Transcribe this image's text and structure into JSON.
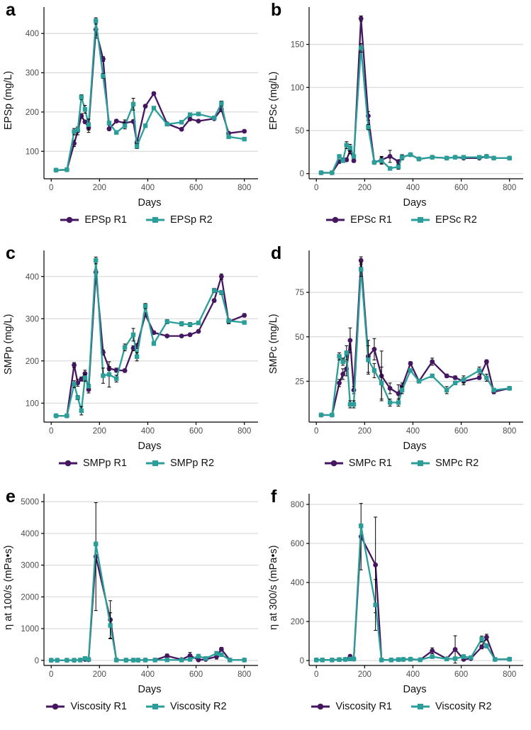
{
  "figure": {
    "colors": {
      "r1": "#451760",
      "r2": "#2B9E99",
      "grid": "#DBDBDB",
      "axis": "#000000",
      "tick_text": "#4D4D4D",
      "background": "#FFFFFF"
    }
  },
  "chart_data": [
    {
      "letter": "a",
      "type": "line",
      "ylabel": "EPSp (mg/L)",
      "xlabel": "Days",
      "xlim": [
        -30,
        845
      ],
      "ylim": [
        30,
        460
      ],
      "xticks": [
        0,
        200,
        400,
        600,
        800
      ],
      "yticks": [
        100,
        200,
        300,
        400
      ],
      "x": [
        20,
        65,
        95,
        110,
        125,
        140,
        155,
        185,
        215,
        240,
        270,
        305,
        340,
        355,
        390,
        425,
        480,
        540,
        575,
        610,
        675,
        705,
        735,
        800
      ],
      "series": [
        {
          "name": "EPSp R1",
          "color": "#451760",
          "marker": "circle",
          "values": [
            52,
            53,
            120,
            152,
            190,
            175,
            160,
            410,
            335,
            157,
            177,
            172,
            176,
            122,
            215,
            247,
            170,
            156,
            182,
            177,
            183,
            207,
            146,
            151
          ],
          "errors": [
            3,
            3,
            8,
            10,
            6,
            4,
            12,
            22,
            6,
            4,
            4,
            8,
            4,
            6,
            4,
            4,
            3,
            3,
            3,
            3,
            3,
            6,
            3,
            3
          ]
        },
        {
          "name": "EPSp R2",
          "color": "#2B9E99",
          "marker": "square",
          "values": [
            52,
            53,
            150,
            155,
            238,
            207,
            168,
            432,
            292,
            172,
            148,
            165,
            220,
            113,
            165,
            210,
            169,
            174,
            193,
            195,
            185,
            222,
            137,
            131
          ],
          "errors": [
            3,
            3,
            8,
            4,
            6,
            10,
            14,
            8,
            6,
            4,
            4,
            8,
            15,
            6,
            4,
            4,
            3,
            3,
            3,
            3,
            3,
            6,
            3,
            3
          ]
        }
      ],
      "legend": [
        {
          "label": "EPSp R1"
        },
        {
          "label": "EPSp R2"
        }
      ]
    },
    {
      "letter": "b",
      "type": "line",
      "ylabel": "EPSc (mg/L)",
      "xlabel": "Days",
      "xlim": [
        -30,
        845
      ],
      "ylim": [
        -6,
        190
      ],
      "xticks": [
        0,
        200,
        400,
        600,
        800
      ],
      "yticks": [
        0,
        50,
        100,
        150
      ],
      "x": [
        20,
        65,
        95,
        110,
        125,
        140,
        155,
        185,
        215,
        240,
        270,
        305,
        340,
        355,
        390,
        425,
        480,
        540,
        575,
        610,
        675,
        705,
        735,
        800
      ],
      "series": [
        {
          "name": "EPSc R1",
          "color": "#451760",
          "marker": "circle",
          "values": [
            1,
            1,
            14,
            16,
            16,
            27,
            15,
            180,
            67,
            13,
            16,
            20,
            14,
            19,
            22,
            17,
            19,
            18,
            19,
            18,
            18,
            20,
            18,
            18
          ],
          "errors": [
            1,
            1,
            2,
            2,
            2,
            4,
            2,
            3,
            5,
            2,
            4,
            7,
            2,
            3,
            2,
            2,
            1,
            1,
            1,
            1,
            1,
            1,
            1,
            1
          ]
        },
        {
          "name": "EPSc R2",
          "color": "#2B9E99",
          "marker": "square",
          "values": [
            1,
            1,
            20,
            15,
            33,
            30,
            20,
            146,
            54,
            13,
            15,
            6,
            8,
            19,
            22,
            17,
            19,
            18,
            19,
            19,
            19,
            20,
            18,
            18
          ],
          "errors": [
            1,
            1,
            2,
            2,
            4,
            4,
            2,
            5,
            3,
            2,
            4,
            2,
            3,
            2,
            2,
            2,
            1,
            1,
            1,
            1,
            1,
            1,
            1,
            1
          ]
        }
      ],
      "legend": [
        {
          "label": "EPSc R1"
        },
        {
          "label": "EPSc R2"
        }
      ]
    },
    {
      "letter": "c",
      "type": "line",
      "ylabel": "SMPp (mg/L)",
      "xlabel": "Days",
      "xlim": [
        -30,
        845
      ],
      "ylim": [
        55,
        455
      ],
      "xticks": [
        0,
        200,
        400,
        600,
        800
      ],
      "yticks": [
        100,
        200,
        300,
        400
      ],
      "x": [
        20,
        65,
        95,
        110,
        125,
        140,
        155,
        185,
        215,
        240,
        270,
        305,
        340,
        355,
        390,
        425,
        480,
        540,
        575,
        610,
        675,
        705,
        735,
        800
      ],
      "series": [
        {
          "name": "SMPp R1",
          "color": "#451760",
          "marker": "circle",
          "values": [
            70,
            70,
            190,
            148,
            157,
            170,
            132,
            410,
            220,
            182,
            178,
            177,
            230,
            235,
            310,
            267,
            259,
            259,
            262,
            270,
            343,
            400,
            293,
            308
          ],
          "errors": [
            2,
            2,
            6,
            8,
            5,
            8,
            8,
            6,
            6,
            5,
            5,
            4,
            6,
            6,
            5,
            4,
            3,
            3,
            3,
            3,
            4,
            6,
            5,
            4
          ]
        },
        {
          "name": "SMPp R2",
          "color": "#2B9E99",
          "marker": "square",
          "values": [
            70,
            70,
            145,
            113,
            82,
            160,
            140,
            438,
            165,
            168,
            158,
            232,
            262,
            210,
            330,
            241,
            293,
            288,
            286,
            290,
            367,
            362,
            295,
            291
          ],
          "errors": [
            2,
            2,
            8,
            5,
            10,
            8,
            5,
            8,
            18,
            30,
            8,
            8,
            15,
            10,
            6,
            4,
            5,
            5,
            5,
            4,
            5,
            5,
            5,
            4
          ]
        }
      ],
      "legend": [
        {
          "label": "SMPp R1"
        },
        {
          "label": "SMPp R2"
        }
      ]
    },
    {
      "letter": "d",
      "type": "line",
      "ylabel": "SMPc (mg/L)",
      "xlabel": "Days",
      "xlim": [
        -30,
        845
      ],
      "ylim": [
        2,
        97
      ],
      "xticks": [
        0,
        200,
        400,
        600,
        800
      ],
      "yticks": [
        25,
        50,
        75
      ],
      "x": [
        20,
        65,
        95,
        110,
        125,
        140,
        155,
        185,
        215,
        240,
        270,
        305,
        340,
        355,
        390,
        425,
        480,
        540,
        575,
        610,
        675,
        705,
        735,
        800
      ],
      "series": [
        {
          "name": "SMPc R1",
          "color": "#451760",
          "marker": "circle",
          "values": [
            6,
            6,
            24,
            29,
            32,
            48,
            20,
            93,
            39,
            43,
            28,
            21,
            18,
            22,
            35,
            25,
            36,
            28,
            27,
            25,
            27,
            36,
            19,
            21
          ],
          "errors": [
            1,
            1,
            2,
            3,
            4,
            7,
            2,
            2,
            9,
            6,
            14,
            3,
            5,
            2,
            1,
            1,
            2,
            1,
            1,
            2,
            1,
            1,
            1,
            1
          ]
        },
        {
          "name": "SMPc R2",
          "color": "#2B9E99",
          "marker": "square",
          "values": [
            6,
            6,
            39,
            36,
            41,
            12,
            12,
            88,
            37,
            31,
            24,
            13,
            13,
            20,
            31,
            25,
            28,
            20,
            24,
            26,
            31,
            27,
            20,
            21
          ],
          "errors": [
            1,
            1,
            2,
            2,
            4,
            2,
            2,
            4,
            8,
            4,
            9,
            2,
            2,
            2,
            1,
            1,
            1,
            2,
            1,
            2,
            2,
            2,
            1,
            1
          ]
        }
      ],
      "legend": [
        {
          "label": "SMPc R1"
        },
        {
          "label": "SMPc R2"
        }
      ]
    },
    {
      "letter": "e",
      "type": "line",
      "ylabel": "η at 100/s (mPa•s)",
      "xlabel": "Days",
      "xlim": [
        -30,
        845
      ],
      "ylim": [
        -160,
        5160
      ],
      "xticks": [
        0,
        200,
        400,
        600,
        800
      ],
      "yticks": [
        0,
        1000,
        2000,
        3000,
        4000,
        5000
      ],
      "x": [
        0,
        25,
        65,
        95,
        120,
        140,
        155,
        185,
        245,
        270,
        310,
        340,
        360,
        390,
        430,
        480,
        540,
        575,
        610,
        640,
        685,
        705,
        740,
        800
      ],
      "series": [
        {
          "name": "Viscosity R1",
          "color": "#451760",
          "marker": "circle",
          "values": [
            5,
            5,
            5,
            5,
            10,
            30,
            20,
            3270,
            1280,
            10,
            8,
            8,
            8,
            10,
            10,
            140,
            25,
            150,
            15,
            30,
            120,
            350,
            10,
            10
          ],
          "errors": [
            2,
            2,
            2,
            2,
            3,
            10,
            6,
            1700,
            600,
            3,
            2,
            2,
            2,
            3,
            3,
            60,
            8,
            100,
            5,
            10,
            80,
            60,
            3,
            3
          ]
        },
        {
          "name": "Viscosity R2",
          "color": "#2B9E99",
          "marker": "square",
          "values": [
            5,
            5,
            5,
            5,
            10,
            60,
            30,
            3670,
            1100,
            10,
            8,
            8,
            8,
            10,
            10,
            15,
            10,
            30,
            130,
            60,
            220,
            180,
            10,
            10
          ],
          "errors": [
            2,
            2,
            2,
            2,
            3,
            10,
            6,
            60,
            400,
            3,
            2,
            2,
            2,
            3,
            3,
            5,
            3,
            10,
            60,
            20,
            60,
            40,
            3,
            3
          ]
        }
      ],
      "legend": [
        {
          "label": "Viscosity R1"
        },
        {
          "label": "Viscosity R2"
        }
      ]
    },
    {
      "letter": "f",
      "type": "line",
      "ylabel": "η at 300/s (mPa•s)",
      "xlabel": "Days",
      "xlim": [
        -30,
        845
      ],
      "ylim": [
        -25,
        840
      ],
      "xticks": [
        0,
        200,
        400,
        600,
        800
      ],
      "yticks": [
        0,
        200,
        400,
        600,
        800
      ],
      "x": [
        0,
        25,
        65,
        95,
        120,
        140,
        155,
        185,
        245,
        270,
        310,
        340,
        360,
        390,
        430,
        480,
        540,
        575,
        610,
        640,
        685,
        705,
        740,
        800
      ],
      "series": [
        {
          "name": "Viscosity R1",
          "color": "#451760",
          "marker": "circle",
          "values": [
            3,
            3,
            3,
            5,
            6,
            22,
            8,
            635,
            490,
            3,
            3,
            5,
            6,
            7,
            4,
            50,
            9,
            57,
            6,
            10,
            70,
            120,
            6,
            7
          ],
          "errors": [
            1,
            1,
            1,
            1,
            1,
            5,
            2,
            170,
            245,
            1,
            1,
            1,
            1,
            2,
            1,
            15,
            2,
            70,
            3,
            3,
            10,
            15,
            2,
            2
          ]
        },
        {
          "name": "Viscosity R2",
          "color": "#2B9E99",
          "marker": "square",
          "values": [
            3,
            3,
            3,
            5,
            6,
            8,
            8,
            690,
            285,
            3,
            3,
            5,
            6,
            7,
            4,
            20,
            8,
            10,
            20,
            15,
            110,
            75,
            6,
            7
          ],
          "errors": [
            1,
            1,
            1,
            1,
            1,
            2,
            2,
            10,
            130,
            1,
            1,
            1,
            1,
            2,
            1,
            5,
            2,
            3,
            10,
            5,
            15,
            10,
            2,
            2
          ]
        }
      ],
      "legend": [
        {
          "label": "Viscosity R1"
        },
        {
          "label": "Viscosity R2"
        }
      ]
    }
  ]
}
